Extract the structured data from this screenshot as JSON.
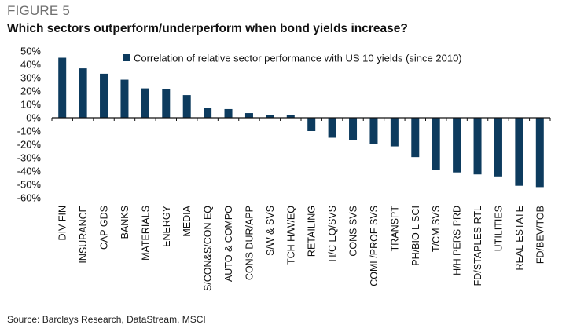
{
  "figure_label": "FIGURE 5",
  "source": "Source: Barclays Research, DataStream, MSCI",
  "chart_data": {
    "type": "bar",
    "title": "Which sectors outperform/underperform when bond yields increase?",
    "xlabel": "",
    "ylabel": "",
    "ylim": [
      -60,
      50
    ],
    "yticks": [
      50,
      40,
      30,
      20,
      10,
      0,
      -10,
      -20,
      -30,
      -40,
      -50,
      -60
    ],
    "ytick_labels": [
      "50%",
      "40%",
      "30%",
      "20%",
      "10%",
      "0%",
      "-10%",
      "-20%",
      "-30%",
      "-40%",
      "-50%",
      "-60%"
    ],
    "grid": false,
    "legend_position": "top-right",
    "bar_color": "#0d3b5e",
    "categories": [
      "DIV FIN",
      "INSURANCE",
      "CAP GDS",
      "BANKS",
      "MATERIALS",
      "ENERGY",
      "MEDIA",
      "S/CON&S/CON EQ",
      "AUTO & COMPO",
      "CONS DUR/APP",
      "S/W & SVS",
      "TCH H/W/EQ",
      "RETAILING",
      "H/C EQ/SVS",
      "CONS SVS",
      "COML/PROF SVS",
      "TRANSPT",
      "PH/BIO L SCI",
      "T/CM SVS",
      "H/H PERS PRD",
      "FD/STAPLES RTL",
      "UTILITIES",
      "REAL ESTATE",
      "FD/BEV/TOB"
    ],
    "series": [
      {
        "name": "Correlation of relative sector performance with US 10 yields (since 2010)",
        "values": [
          45,
          37,
          33,
          28.5,
          22,
          21.5,
          17,
          7.5,
          6.5,
          3.5,
          2,
          2,
          -10,
          -15,
          -17,
          -19.5,
          -21.5,
          -29.5,
          -39,
          -41,
          -42.5,
          -44,
          -51,
          -52
        ]
      }
    ]
  }
}
